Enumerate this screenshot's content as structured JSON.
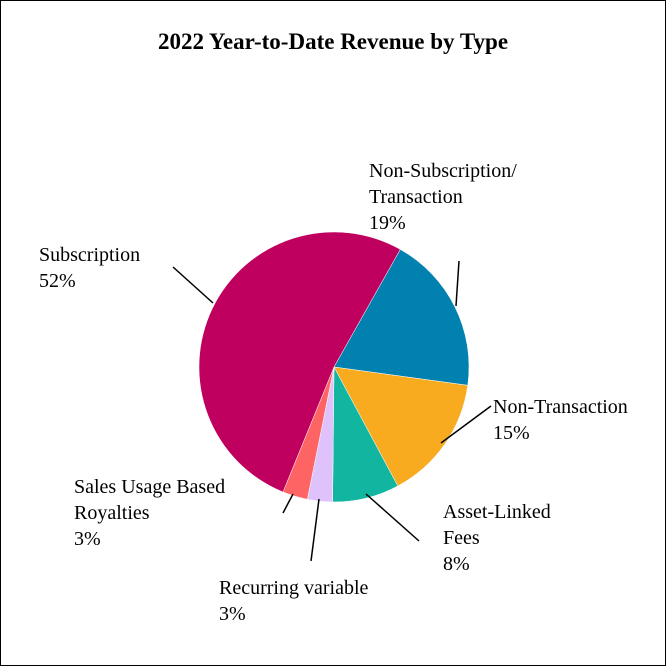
{
  "chart_data": {
    "type": "pie",
    "title": "2022 Year-to-Date Revenue by Type",
    "categories": [
      "Non-Subscription/ Transaction",
      "Non-Transaction",
      "Asset-Linked Fees",
      "Recurring variable",
      "Sales Usage Based Royalties",
      "Subscription"
    ],
    "values": [
      19,
      15,
      8,
      3,
      3,
      52
    ],
    "value_labels": [
      "19%",
      "15%",
      "8%",
      "3%",
      "3%",
      "52%"
    ],
    "colors": [
      "#0081b0",
      "#f9ab20",
      "#12b59f",
      "#dfc2fc",
      "#ff6464",
      "#c0005f"
    ]
  }
}
